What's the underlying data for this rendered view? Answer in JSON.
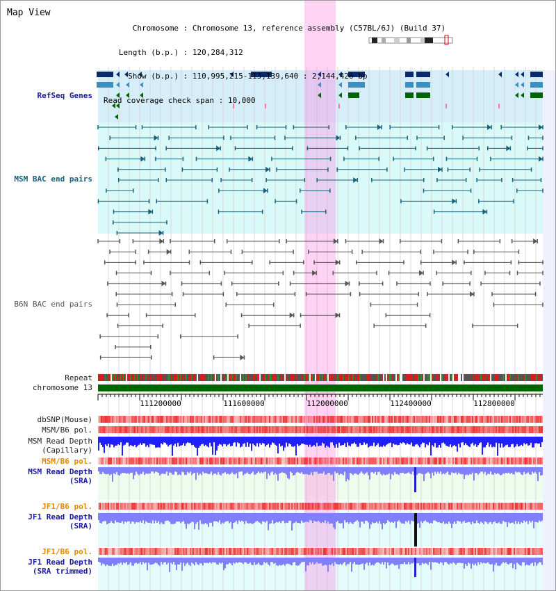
{
  "view_title": "Map View",
  "info": [
    {
      "key": "Chromosome",
      "value": "Chromosome 13, reference assembly (C57BL/6J) (Build 37)"
    },
    {
      "key": "Length (b.p.)",
      "value": "120,284,312"
    },
    {
      "key": "Show (b.p.)",
      "value": "110,995,215-113,139,640 : 2,144,426 bp"
    },
    {
      "key": "Read coverage check span",
      "value": "10,000"
    }
  ],
  "tracks": {
    "refseq": "RefSeq Genes",
    "msm_bac": "MSM BAC end pairs",
    "b6n_bac": "B6N BAC end pairs",
    "repeat": "Repeat",
    "chromosome": "chromosome 13",
    "dbsnp": "dbSNP(Mouse)",
    "msm_b6_pol_1": "MSM/B6 pol.",
    "msm_depth_cap_1": "MSM Read Depth",
    "msm_depth_cap_2": "(Capillary)",
    "msm_b6_pol_2": "MSM/B6 pol.",
    "msm_depth_sra_1": "MSM Read Depth",
    "msm_depth_sra_2": "(SRA)",
    "jf1_b6_pol_1": "JF1/B6 pol.",
    "jf1_depth_sra_1": "JF1 Read Depth",
    "jf1_depth_sra_2": "(SRA)",
    "jf1_b6_pol_2": "JF1/B6 pol.",
    "jf1_depth_trim_1": "JF1 Read Depth",
    "jf1_depth_trim_2": "(SRA trimmed)"
  },
  "axis": {
    "ticks": [
      "111200000",
      "111600000",
      "112000000",
      "112400000",
      "112800000"
    ]
  },
  "colors": {
    "refseq_dark": "#0a2a6a",
    "refseq_mid": "#3d8fc0",
    "refseq_green": "#006400",
    "bac_teal": "#17607a",
    "bac_gray": "#555555",
    "chromosome": "#006400",
    "highlight": "#ff80e0",
    "depth_blue": "#2020ff",
    "depth_light": "#8080ff",
    "pol_red": "#ee3333"
  }
}
